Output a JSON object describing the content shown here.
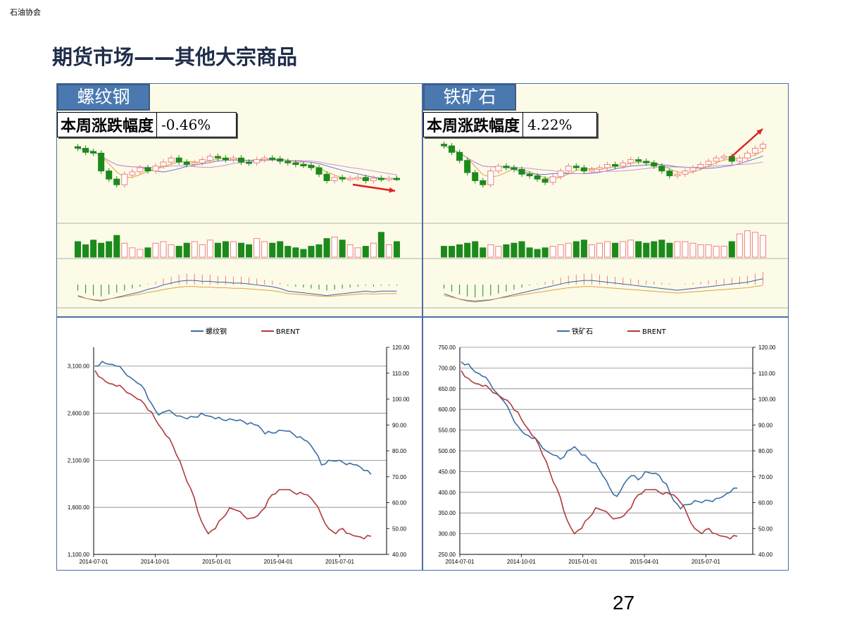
{
  "header": {
    "org": "石油协会",
    "title": "期货市场——其他大宗商品",
    "page_number": "27"
  },
  "colors": {
    "rise": "#f08080",
    "fall": "#1b8a1b",
    "line_blue": "#3a6ea5",
    "line_red": "#b03a3a",
    "arrow": "#e02020",
    "panel_border": "#4b6fa5",
    "label_bg": "#4a79b0"
  },
  "kline_panels": [
    {
      "label": "螺纹钢",
      "change_label": "本周涨跌幅度",
      "change_value": "-0.46%",
      "trend": "down",
      "candles": [
        [
          0.92,
          0.9
        ],
        [
          0.9,
          0.85
        ],
        [
          0.86,
          0.84
        ],
        [
          0.84,
          0.62
        ],
        [
          0.62,
          0.52
        ],
        [
          0.52,
          0.45
        ],
        [
          0.45,
          0.58
        ],
        [
          0.57,
          0.61
        ],
        [
          0.61,
          0.66
        ],
        [
          0.66,
          0.62
        ],
        [
          0.62,
          0.68
        ],
        [
          0.68,
          0.73
        ],
        [
          0.73,
          0.78
        ],
        [
          0.78,
          0.73
        ],
        [
          0.73,
          0.7
        ],
        [
          0.7,
          0.72
        ],
        [
          0.72,
          0.76
        ],
        [
          0.75,
          0.8
        ],
        [
          0.8,
          0.78
        ],
        [
          0.78,
          0.76
        ],
        [
          0.76,
          0.78
        ],
        [
          0.78,
          0.73
        ],
        [
          0.73,
          0.72
        ],
        [
          0.72,
          0.76
        ],
        [
          0.76,
          0.78
        ],
        [
          0.78,
          0.77
        ],
        [
          0.77,
          0.74
        ],
        [
          0.74,
          0.72
        ],
        [
          0.72,
          0.7
        ],
        [
          0.7,
          0.69
        ],
        [
          0.69,
          0.66
        ],
        [
          0.66,
          0.58
        ],
        [
          0.58,
          0.5
        ],
        [
          0.5,
          0.54
        ],
        [
          0.54,
          0.52
        ],
        [
          0.52,
          0.53
        ],
        [
          0.53,
          0.54
        ],
        [
          0.54,
          0.5
        ],
        [
          0.5,
          0.53
        ],
        [
          0.53,
          0.52
        ],
        [
          0.52,
          0.53
        ],
        [
          0.53,
          0.53
        ]
      ],
      "volume": [
        0.5,
        0.4,
        0.55,
        0.45,
        0.5,
        0.7,
        0.45,
        0.3,
        0.25,
        0.3,
        0.45,
        0.5,
        0.4,
        0.35,
        0.45,
        0.5,
        0.4,
        0.55,
        0.45,
        0.5,
        0.5,
        0.45,
        0.4,
        0.6,
        0.5,
        0.45,
        0.5,
        0.35,
        0.3,
        0.25,
        0.35,
        0.4,
        0.6,
        0.65,
        0.55,
        0.4,
        0.3,
        0.35,
        0.45,
        0.8,
        0.4,
        0.5
      ],
      "macd": [
        -0.3,
        -0.45,
        -0.55,
        -0.6,
        -0.5,
        -0.4,
        -0.3,
        -0.2,
        -0.1,
        0.05,
        0.15,
        0.3,
        0.4,
        0.5,
        0.55,
        0.55,
        0.5,
        0.5,
        0.45,
        0.45,
        0.4,
        0.4,
        0.35,
        0.3,
        0.25,
        0.2,
        0.1,
        -0.05,
        -0.1,
        -0.15,
        -0.2,
        -0.25,
        -0.3,
        -0.25,
        -0.2,
        -0.15,
        -0.1,
        -0.05,
        -0.1,
        -0.05,
        -0.05,
        -0.05
      ]
    },
    {
      "label": "铁矿石",
      "change_label": "本周涨跌幅度",
      "change_value": "4.22%",
      "trend": "up",
      "candles": [
        [
          0.95,
          0.93
        ],
        [
          0.93,
          0.85
        ],
        [
          0.85,
          0.75
        ],
        [
          0.75,
          0.6
        ],
        [
          0.6,
          0.5
        ],
        [
          0.5,
          0.45
        ],
        [
          0.45,
          0.62
        ],
        [
          0.62,
          0.68
        ],
        [
          0.68,
          0.66
        ],
        [
          0.66,
          0.64
        ],
        [
          0.64,
          0.58
        ],
        [
          0.58,
          0.56
        ],
        [
          0.56,
          0.52
        ],
        [
          0.52,
          0.48
        ],
        [
          0.48,
          0.55
        ],
        [
          0.55,
          0.62
        ],
        [
          0.62,
          0.68
        ],
        [
          0.68,
          0.66
        ],
        [
          0.66,
          0.62
        ],
        [
          0.62,
          0.64
        ],
        [
          0.64,
          0.66
        ],
        [
          0.66,
          0.7
        ],
        [
          0.7,
          0.68
        ],
        [
          0.68,
          0.72
        ],
        [
          0.72,
          0.76
        ],
        [
          0.76,
          0.74
        ],
        [
          0.74,
          0.72
        ],
        [
          0.72,
          0.68
        ],
        [
          0.68,
          0.62
        ],
        [
          0.62,
          0.56
        ],
        [
          0.56,
          0.58
        ],
        [
          0.58,
          0.62
        ],
        [
          0.62,
          0.66
        ],
        [
          0.66,
          0.7
        ],
        [
          0.7,
          0.74
        ],
        [
          0.74,
          0.78
        ],
        [
          0.78,
          0.8
        ],
        [
          0.8,
          0.74
        ],
        [
          0.74,
          0.78
        ],
        [
          0.78,
          0.84
        ],
        [
          0.84,
          0.9
        ],
        [
          0.9,
          0.95
        ]
      ],
      "volume": [
        0.35,
        0.35,
        0.4,
        0.45,
        0.5,
        0.3,
        0.4,
        0.35,
        0.4,
        0.45,
        0.5,
        0.3,
        0.25,
        0.3,
        0.35,
        0.4,
        0.45,
        0.5,
        0.55,
        0.4,
        0.45,
        0.5,
        0.45,
        0.5,
        0.55,
        0.5,
        0.45,
        0.5,
        0.55,
        0.45,
        0.5,
        0.5,
        0.45,
        0.4,
        0.4,
        0.35,
        0.35,
        0.5,
        0.75,
        0.85,
        0.8,
        0.7
      ],
      "macd": [
        -0.2,
        -0.35,
        -0.5,
        -0.6,
        -0.65,
        -0.6,
        -0.55,
        -0.45,
        -0.35,
        -0.25,
        -0.15,
        -0.05,
        0.05,
        0.15,
        0.25,
        0.35,
        0.45,
        0.5,
        0.55,
        0.55,
        0.5,
        0.45,
        0.4,
        0.35,
        0.3,
        0.25,
        0.2,
        0.15,
        0.1,
        0.05,
        0.0,
        0.05,
        0.1,
        0.15,
        0.2,
        0.25,
        0.3,
        0.35,
        0.4,
        0.45,
        0.55,
        0.65
      ]
    }
  ],
  "chart_data": [
    {
      "type": "line",
      "legend_position": "top",
      "x_ticks": [
        "2014-07-01",
        "2014-10-01",
        "2015-01-01",
        "2015-04-01",
        "2015-07-01"
      ],
      "y_left": {
        "ticks": [
          "1,100.00",
          "1,600.00",
          "2,100.00",
          "2,600.00",
          "3,100.00"
        ],
        "range": [
          1100,
          3300
        ]
      },
      "y_right": {
        "ticks": [
          "40.00",
          "50.00",
          "60.00",
          "70.00",
          "80.00",
          "90.00",
          "100.00",
          "110.00",
          "120.00"
        ],
        "range": [
          40,
          120
        ]
      },
      "series": [
        {
          "name": "螺纹钢",
          "color": "#3a6ea5",
          "axis": "left",
          "values": [
            3100,
            3150,
            3120,
            3100,
            3050,
            2980,
            2920,
            2850,
            2700,
            2580,
            2620,
            2600,
            2570,
            2540,
            2560,
            2600,
            2570,
            2540,
            2530,
            2540,
            2520,
            2510,
            2500,
            2470,
            2380,
            2390,
            2420,
            2410,
            2380,
            2350,
            2300,
            2200,
            2050,
            2100,
            2090,
            2080,
            2070,
            2050,
            1990,
            1950
          ]
        },
        {
          "name": "BRENT",
          "color": "#b03a3a",
          "axis": "right",
          "values": [
            111,
            108,
            106,
            105,
            104,
            102,
            100,
            98,
            95,
            90,
            86,
            82,
            76,
            68,
            62,
            53,
            48,
            50,
            54,
            58,
            57,
            55,
            54,
            55,
            58,
            63,
            65,
            65,
            64,
            64,
            63,
            60,
            55,
            50,
            48,
            50,
            48,
            47,
            46,
            47
          ]
        }
      ]
    },
    {
      "type": "line",
      "legend_position": "top",
      "x_ticks": [
        "2014-07-01",
        "2014-10-01",
        "2015-01-01",
        "2015-04-01",
        "2015-07-01"
      ],
      "y_left": {
        "ticks": [
          "250.00",
          "300.00",
          "350.00",
          "400.00",
          "450.00",
          "500.00",
          "550.00",
          "600.00",
          "650.00",
          "700.00",
          "750.00"
        ],
        "range": [
          250,
          750
        ]
      },
      "y_right": {
        "ticks": [
          "40.00",
          "50.00",
          "60.00",
          "70.00",
          "80.00",
          "90.00",
          "100.00",
          "110.00",
          "120.00"
        ],
        "range": [
          40,
          120
        ]
      },
      "series": [
        {
          "name": "铁矿石",
          "color": "#3a6ea5",
          "axis": "left",
          "values": [
            715,
            710,
            690,
            680,
            665,
            640,
            620,
            590,
            560,
            540,
            530,
            520,
            500,
            490,
            480,
            500,
            510,
            490,
            480,
            470,
            440,
            410,
            390,
            420,
            440,
            430,
            450,
            445,
            440,
            420,
            380,
            360,
            370,
            380,
            375,
            380,
            385,
            390,
            400,
            410
          ]
        },
        {
          "name": "BRENT",
          "color": "#b03a3a",
          "axis": "right",
          "values": [
            111,
            108,
            106,
            105,
            104,
            102,
            100,
            98,
            95,
            90,
            86,
            82,
            76,
            68,
            62,
            53,
            48,
            50,
            54,
            58,
            57,
            55,
            54,
            55,
            58,
            63,
            65,
            65,
            64,
            64,
            63,
            60,
            55,
            50,
            48,
            50,
            48,
            47,
            46,
            47
          ]
        }
      ]
    }
  ]
}
